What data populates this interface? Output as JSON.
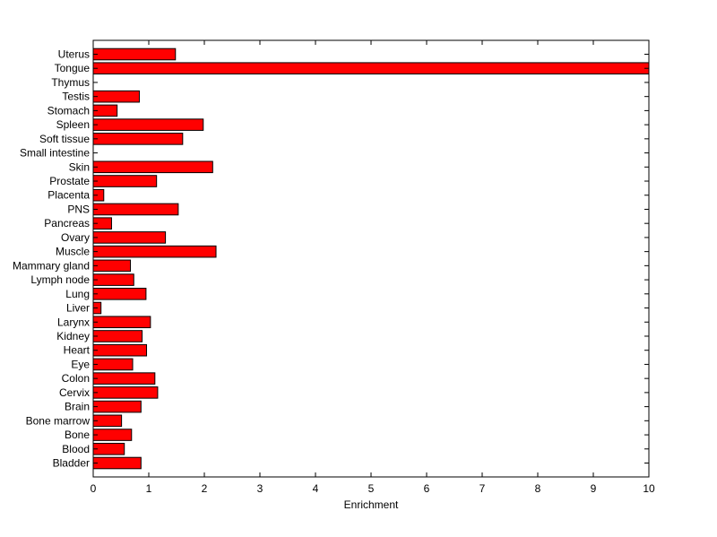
{
  "chart_data": {
    "type": "bar",
    "orientation": "horizontal",
    "xlabel": "Enrichment",
    "ylabel": "",
    "title": "",
    "xlim": [
      0,
      10
    ],
    "xticks": [
      "0",
      "1",
      "2",
      "3",
      "4",
      "5",
      "6",
      "7",
      "8",
      "9",
      "10"
    ],
    "grid": false,
    "bar_color": "#ff0000",
    "edge_color": "#000000",
    "categories": [
      "Uterus",
      "Tongue",
      "Thymus",
      "Testis",
      "Stomach",
      "Spleen",
      "Soft tissue",
      "Small intestine",
      "Skin",
      "Prostate",
      "Placenta",
      "PNS",
      "Pancreas",
      "Ovary",
      "Muscle",
      "Mammary gland",
      "Lymph node",
      "Lung",
      "Liver",
      "Larynx",
      "Kidney",
      "Heart",
      "Eye",
      "Colon",
      "Cervix",
      "Brain",
      "Bone marrow",
      "Bone",
      "Blood",
      "Bladder"
    ],
    "values": [
      1.48,
      10.0,
      0.0,
      0.83,
      0.43,
      1.98,
      1.61,
      0.0,
      2.15,
      1.14,
      0.19,
      1.53,
      0.33,
      1.3,
      2.21,
      0.67,
      0.73,
      0.95,
      0.14,
      1.03,
      0.88,
      0.96,
      0.71,
      1.11,
      1.16,
      0.86,
      0.51,
      0.69,
      0.56,
      0.86
    ]
  }
}
